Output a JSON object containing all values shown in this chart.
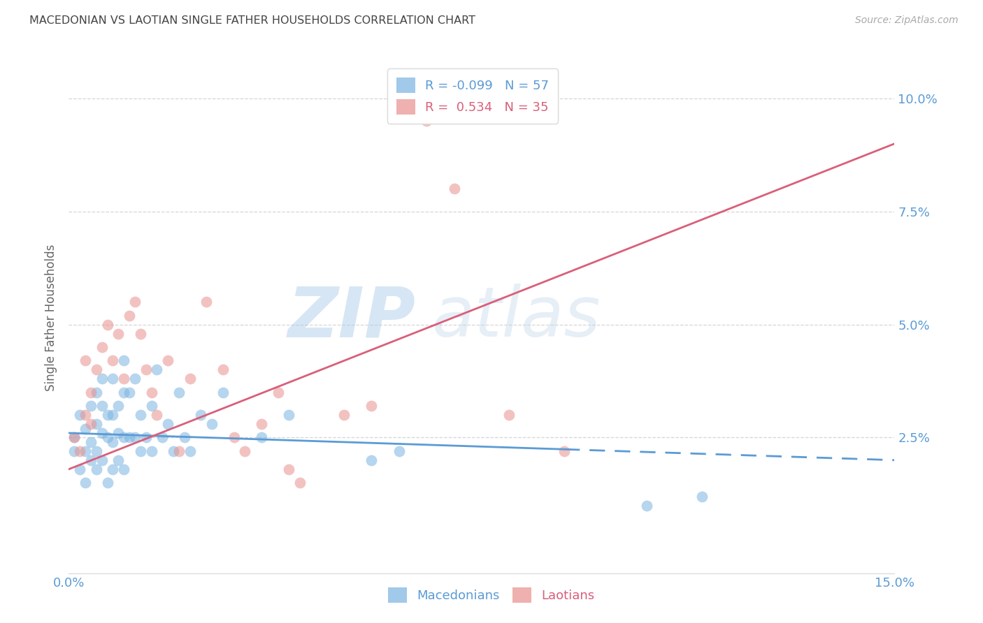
{
  "title": "MACEDONIAN VS LAOTIAN SINGLE FATHER HOUSEHOLDS CORRELATION CHART",
  "source": "Source: ZipAtlas.com",
  "ylabel": "Single Father Households",
  "watermark": "ZIPatlas",
  "xlim": [
    0.0,
    0.15
  ],
  "ylim": [
    -0.005,
    0.108
  ],
  "xticks": [
    0.0,
    0.03,
    0.06,
    0.09,
    0.12,
    0.15
  ],
  "xtick_labels": [
    "0.0%",
    "",
    "",
    "",
    "",
    "15.0%"
  ],
  "yticks": [
    0.025,
    0.05,
    0.075,
    0.1
  ],
  "ytick_labels_right": [
    "2.5%",
    "5.0%",
    "7.5%",
    "10.0%"
  ],
  "macedonian_color": "#7ab3e0",
  "laotian_color": "#e8908e",
  "macedonian_line_color": "#5b9bd5",
  "laotian_line_color": "#d95f7a",
  "macedonian_R": -0.099,
  "macedonian_N": 57,
  "laotian_R": 0.534,
  "laotian_N": 35,
  "background_color": "#ffffff",
  "grid_color": "#cccccc",
  "title_color": "#444444",
  "axis_label_color": "#5b9bd5",
  "mac_line_y0": 0.026,
  "mac_line_y1": 0.02,
  "lao_line_y0": 0.018,
  "lao_line_y1": 0.09,
  "macedonian_scatter_x": [
    0.001,
    0.001,
    0.002,
    0.002,
    0.003,
    0.003,
    0.003,
    0.004,
    0.004,
    0.004,
    0.005,
    0.005,
    0.005,
    0.005,
    0.006,
    0.006,
    0.006,
    0.006,
    0.007,
    0.007,
    0.007,
    0.008,
    0.008,
    0.008,
    0.008,
    0.009,
    0.009,
    0.009,
    0.01,
    0.01,
    0.01,
    0.01,
    0.011,
    0.011,
    0.012,
    0.012,
    0.013,
    0.013,
    0.014,
    0.015,
    0.015,
    0.016,
    0.017,
    0.018,
    0.019,
    0.02,
    0.021,
    0.022,
    0.024,
    0.026,
    0.028,
    0.035,
    0.04,
    0.055,
    0.06,
    0.105,
    0.115
  ],
  "macedonian_scatter_y": [
    0.025,
    0.022,
    0.03,
    0.018,
    0.027,
    0.022,
    0.015,
    0.032,
    0.024,
    0.02,
    0.035,
    0.028,
    0.022,
    0.018,
    0.038,
    0.032,
    0.026,
    0.02,
    0.03,
    0.025,
    0.015,
    0.038,
    0.03,
    0.024,
    0.018,
    0.032,
    0.026,
    0.02,
    0.042,
    0.035,
    0.025,
    0.018,
    0.035,
    0.025,
    0.038,
    0.025,
    0.03,
    0.022,
    0.025,
    0.032,
    0.022,
    0.04,
    0.025,
    0.028,
    0.022,
    0.035,
    0.025,
    0.022,
    0.03,
    0.028,
    0.035,
    0.025,
    0.03,
    0.02,
    0.022,
    0.01,
    0.012
  ],
  "laotian_scatter_x": [
    0.001,
    0.002,
    0.003,
    0.003,
    0.004,
    0.004,
    0.005,
    0.006,
    0.007,
    0.008,
    0.009,
    0.01,
    0.011,
    0.012,
    0.013,
    0.014,
    0.015,
    0.016,
    0.018,
    0.02,
    0.022,
    0.025,
    0.028,
    0.03,
    0.032,
    0.035,
    0.038,
    0.04,
    0.042,
    0.05,
    0.055,
    0.065,
    0.07,
    0.08,
    0.09
  ],
  "laotian_scatter_y": [
    0.025,
    0.022,
    0.03,
    0.042,
    0.035,
    0.028,
    0.04,
    0.045,
    0.05,
    0.042,
    0.048,
    0.038,
    0.052,
    0.055,
    0.048,
    0.04,
    0.035,
    0.03,
    0.042,
    0.022,
    0.038,
    0.055,
    0.04,
    0.025,
    0.022,
    0.028,
    0.035,
    0.018,
    0.015,
    0.03,
    0.032,
    0.095,
    0.08,
    0.03,
    0.022
  ]
}
